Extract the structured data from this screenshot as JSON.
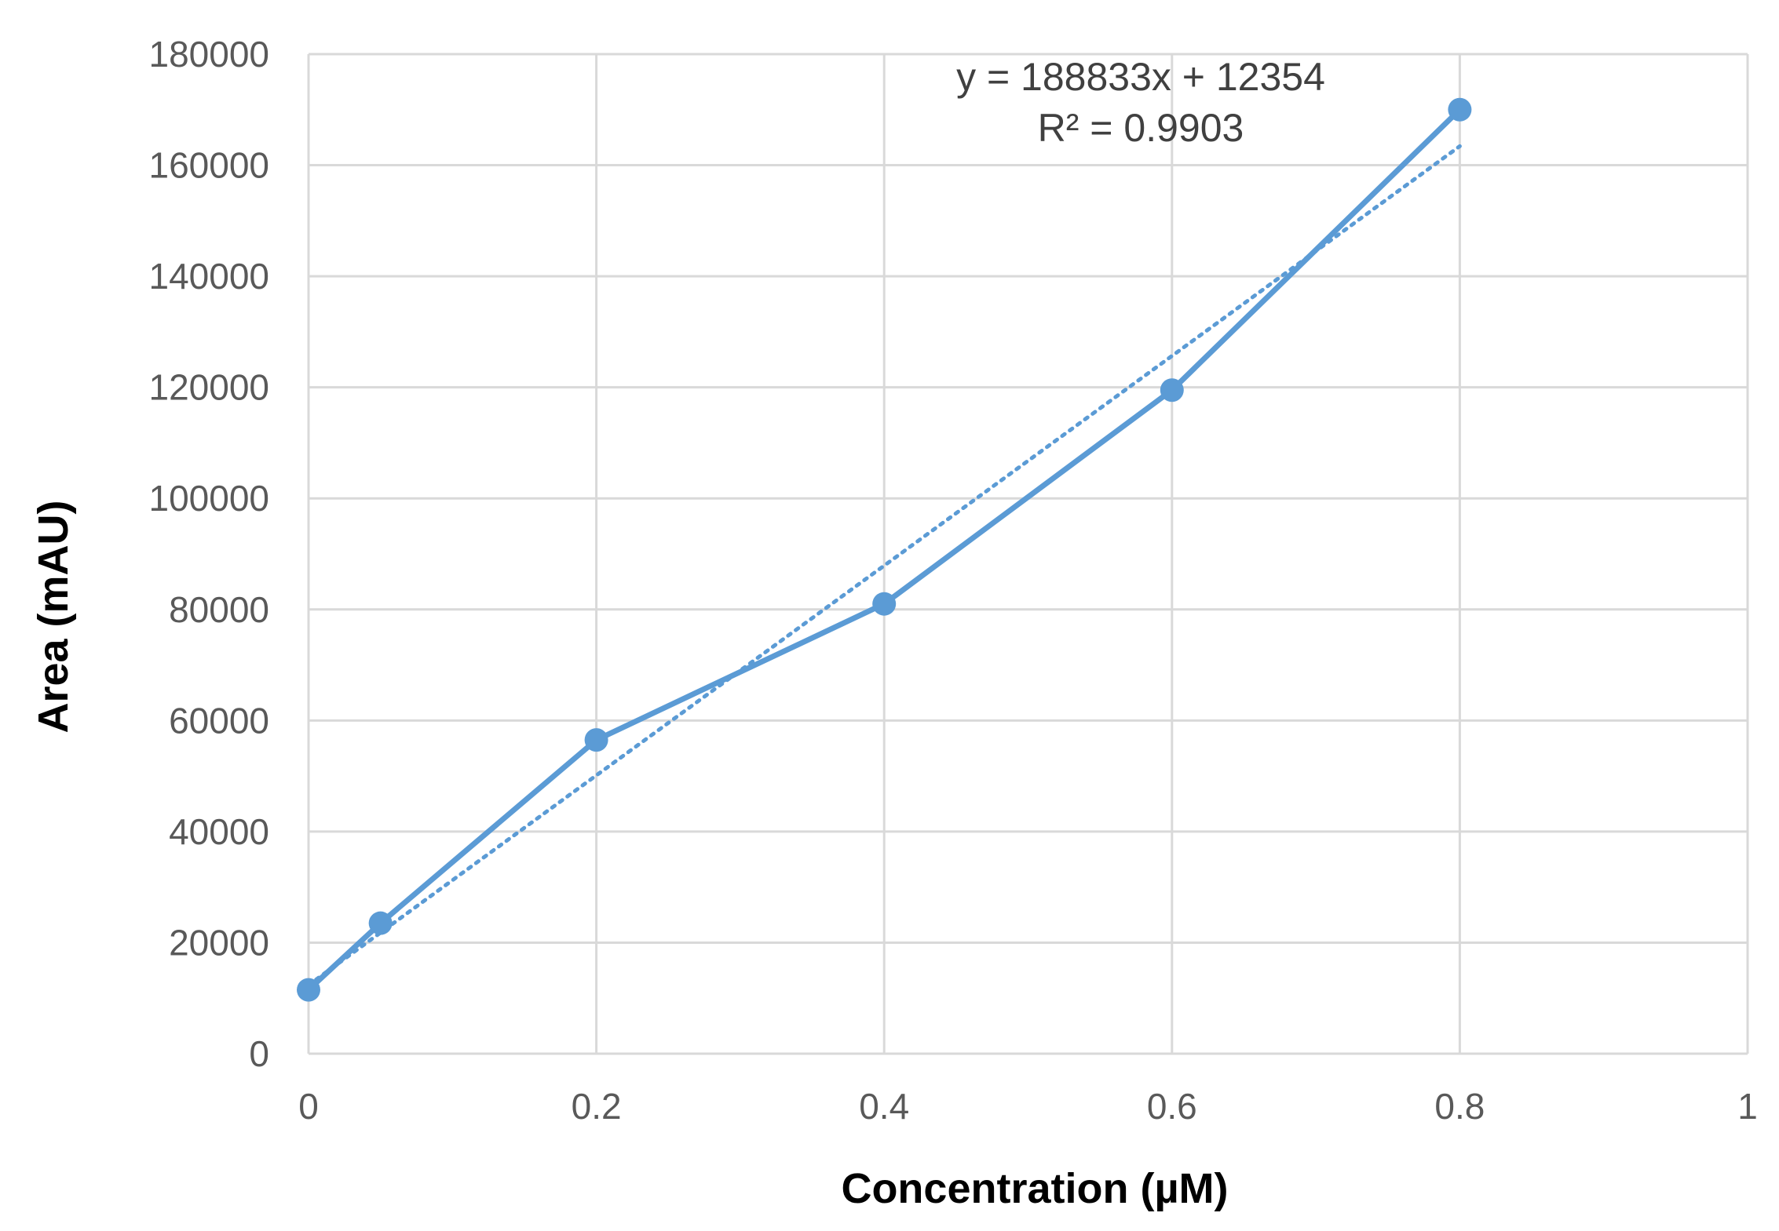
{
  "chart_data": {
    "type": "scatter",
    "title": "",
    "xlabel": "Concentration (µM)",
    "ylabel": "Area (mAU)",
    "xlim": [
      0,
      1
    ],
    "ylim": [
      0,
      180000
    ],
    "x_ticks": [
      "0",
      "0.2",
      "0.4",
      "0.6",
      "0.8",
      "1"
    ],
    "y_ticks": [
      "0",
      "20000",
      "40000",
      "60000",
      "80000",
      "100000",
      "120000",
      "140000",
      "160000",
      "180000"
    ],
    "grid": true,
    "legend": "none",
    "series": [
      {
        "x": [
          0,
          0.05,
          0.2,
          0.4,
          0.6,
          0.8
        ],
        "y": [
          11500,
          23500,
          56500,
          81000,
          119500,
          170000
        ],
        "color": "#5b9bd5",
        "style": "line-with-markers"
      }
    ],
    "trendline": {
      "type": "linear",
      "slope": 188833,
      "intercept": 12354,
      "x_range": [
        0,
        0.8
      ],
      "style": "dotted",
      "color": "#5b9bd5",
      "equation_text": "y = 188833x + 12354",
      "r2_text": "R² = 0.9903"
    },
    "colors": {
      "grid": "#d9d9d9",
      "series": "#5b9bd5"
    }
  }
}
